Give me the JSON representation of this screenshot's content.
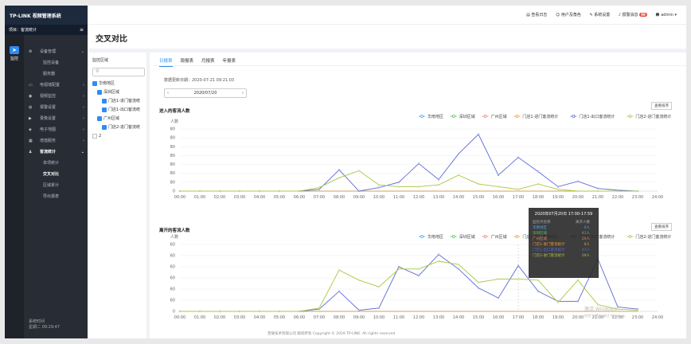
{
  "brand": "TP-LINK 视频管理系统",
  "project": "项目：客流统计",
  "rail": {
    "label": "监控"
  },
  "nav": {
    "items": [
      {
        "label": "设备管理",
        "icon": "gear",
        "arrow": "⌄",
        "sub": false
      },
      {
        "label": "监控设备",
        "icon": "",
        "arrow": "",
        "sub": true
      },
      {
        "label": "服务器",
        "icon": "",
        "arrow": "",
        "sub": true
      },
      {
        "label": "电视墙配置",
        "icon": "tv",
        "arrow": "›",
        "sub": false
      },
      {
        "label": "视频监控",
        "icon": "video",
        "arrow": "›",
        "sub": false
      },
      {
        "label": "报警设置",
        "icon": "bell",
        "arrow": "›",
        "sub": false
      },
      {
        "label": "录像设置",
        "icon": "record",
        "arrow": "›",
        "sub": false
      },
      {
        "label": "电子地图",
        "icon": "map",
        "arrow": "›",
        "sub": false
      },
      {
        "label": "增值服务",
        "icon": "grid",
        "arrow": "›",
        "sub": false
      },
      {
        "label": "客流统计",
        "icon": "user",
        "arrow": "⌄",
        "sub": false,
        "active": true
      },
      {
        "label": "单项统计",
        "icon": "",
        "arrow": "",
        "sub": true
      },
      {
        "label": "交叉对比",
        "icon": "",
        "arrow": "",
        "sub": true,
        "active": true
      },
      {
        "label": "区域累计",
        "icon": "",
        "arrow": "",
        "sub": true
      },
      {
        "label": "导出报表",
        "icon": "",
        "arrow": "",
        "sub": true
      }
    ],
    "foot1": "系统时间",
    "foot2": "星期二 09:29:47"
  },
  "topbar": {
    "log": "查看日志",
    "users": "用户及角色",
    "settings": "系统设置",
    "alarm": "报警消息",
    "alarm_count": "99",
    "user": "admin"
  },
  "page_title": "交叉对比",
  "area": {
    "label": "监控区域",
    "search_placeholder": "",
    "tree": [
      "华南地区",
      "深圳区域",
      "门店1-进门客流统",
      "门店1-出口客流统",
      "广州区域",
      "门店2-进门客流统",
      "2"
    ]
  },
  "tabs": [
    "日报表",
    "周报表",
    "月报表",
    "年报表"
  ],
  "update_time": "数据更新日期：2020-07-21 09:21:03",
  "date": "2020/07/20",
  "sort_label": "查看排序",
  "legend": [
    "华南地区",
    "深圳区域",
    "广州区域",
    "门店1-进门客流统计",
    "门店1-出口客流统计",
    "门店2-进门客流统计"
  ],
  "colors": {
    "s1": "#4aa3e8",
    "s2": "#5bc05b",
    "s3": "#e8836e",
    "s4": "#f0a030",
    "s5": "#5b6ad6",
    "s6": "#a8c83c"
  },
  "chart_data": [
    {
      "type": "line",
      "title": "进入的客流人数",
      "ylabel": "人数",
      "ylim": [
        0,
        80
      ],
      "x": [
        "00:00",
        "01:00",
        "02:00",
        "03:00",
        "04:00",
        "05:00",
        "06:00",
        "07:00",
        "08:00",
        "09:00",
        "10:00",
        "11:00",
        "12:00",
        "13:00",
        "14:00",
        "15:00",
        "16:00",
        "17:00",
        "18:00",
        "19:00",
        "20:00",
        "21:00",
        "22:00",
        "23:00",
        "24:00"
      ],
      "series": [
        {
          "name": "门店1-出口客流统计",
          "values": [
            0,
            0,
            0,
            0,
            0,
            0,
            0,
            2,
            24,
            0,
            4,
            10,
            31,
            13,
            42,
            64,
            18,
            38,
            22,
            5,
            11,
            3,
            1,
            0,
            null
          ]
        },
        {
          "name": "门店2-进门客流统计",
          "values": [
            0,
            0,
            0,
            0,
            0,
            0,
            0,
            4,
            15,
            23,
            7,
            5,
            5,
            7,
            18,
            8,
            5,
            2,
            8,
            2,
            0,
            0,
            0,
            0,
            null
          ]
        }
      ]
    },
    {
      "type": "line",
      "title": "离开的客流人数",
      "ylabel": "人数",
      "ylim": [
        0,
        60
      ],
      "x": [
        "00:00",
        "01:00",
        "02:00",
        "03:00",
        "04:00",
        "05:00",
        "06:00",
        "07:00",
        "08:00",
        "09:00",
        "10:00",
        "11:00",
        "12:00",
        "13:00",
        "14:00",
        "15:00",
        "16:00",
        "17:00",
        "18:00",
        "19:00",
        "20:00",
        "21:00",
        "22:00",
        "23:00",
        "24:00"
      ],
      "series": [
        {
          "name": "门店1-出口客流统计",
          "values": [
            0,
            0,
            0,
            0,
            0,
            0,
            0,
            2,
            18,
            1,
            3,
            40,
            32,
            51,
            38,
            21,
            12,
            41,
            18,
            9,
            9,
            47,
            4,
            2,
            null
          ]
        },
        {
          "name": "门店2-进门客流统计",
          "values": [
            0,
            0,
            0,
            0,
            0,
            0,
            0,
            3,
            37,
            28,
            22,
            38,
            38,
            45,
            42,
            26,
            29,
            29,
            28,
            8,
            28,
            6,
            2,
            1,
            null
          ]
        }
      ]
    }
  ],
  "tooltip": {
    "title": "2020年07月20日 17:00-17:59",
    "col1": "监控点名称",
    "col2": "离开人数",
    "rows": [
      [
        "华南地区",
        "0人"
      ],
      [
        "深圳区域",
        "41人"
      ],
      [
        "广州区域",
        "29人"
      ],
      [
        "门店1-进门客流统计",
        "0人"
      ],
      [
        "门店1-出口客流统计",
        "41人"
      ],
      [
        "门店2-进门客流统计",
        "29人"
      ]
    ]
  },
  "footer": "普联技术有限公司 版权所有 Copyright © 2019 TP-LINK. All rights reserved",
  "watermark1": "激活 Windows",
  "watermark2": "转到\"设置\"以激活 Windows。"
}
